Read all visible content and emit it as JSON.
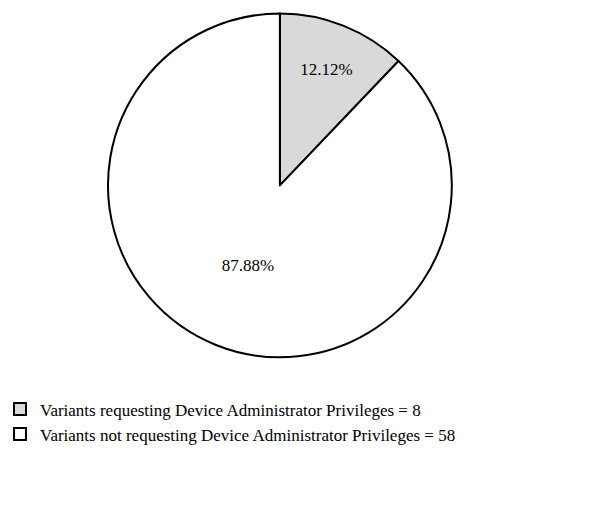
{
  "chart_data": {
    "type": "pie",
    "categories": [
      "Variants requesting Device Administrator Privileges = 8",
      "Variants not requesting Device Administrator Privileges = 58"
    ],
    "values": [
      12.12,
      87.88
    ],
    "value_labels": [
      "12.12%",
      "87.88%"
    ],
    "colors": [
      "#d9d9d9",
      "#ffffff"
    ],
    "data_labels": true,
    "legend": "bottom"
  }
}
